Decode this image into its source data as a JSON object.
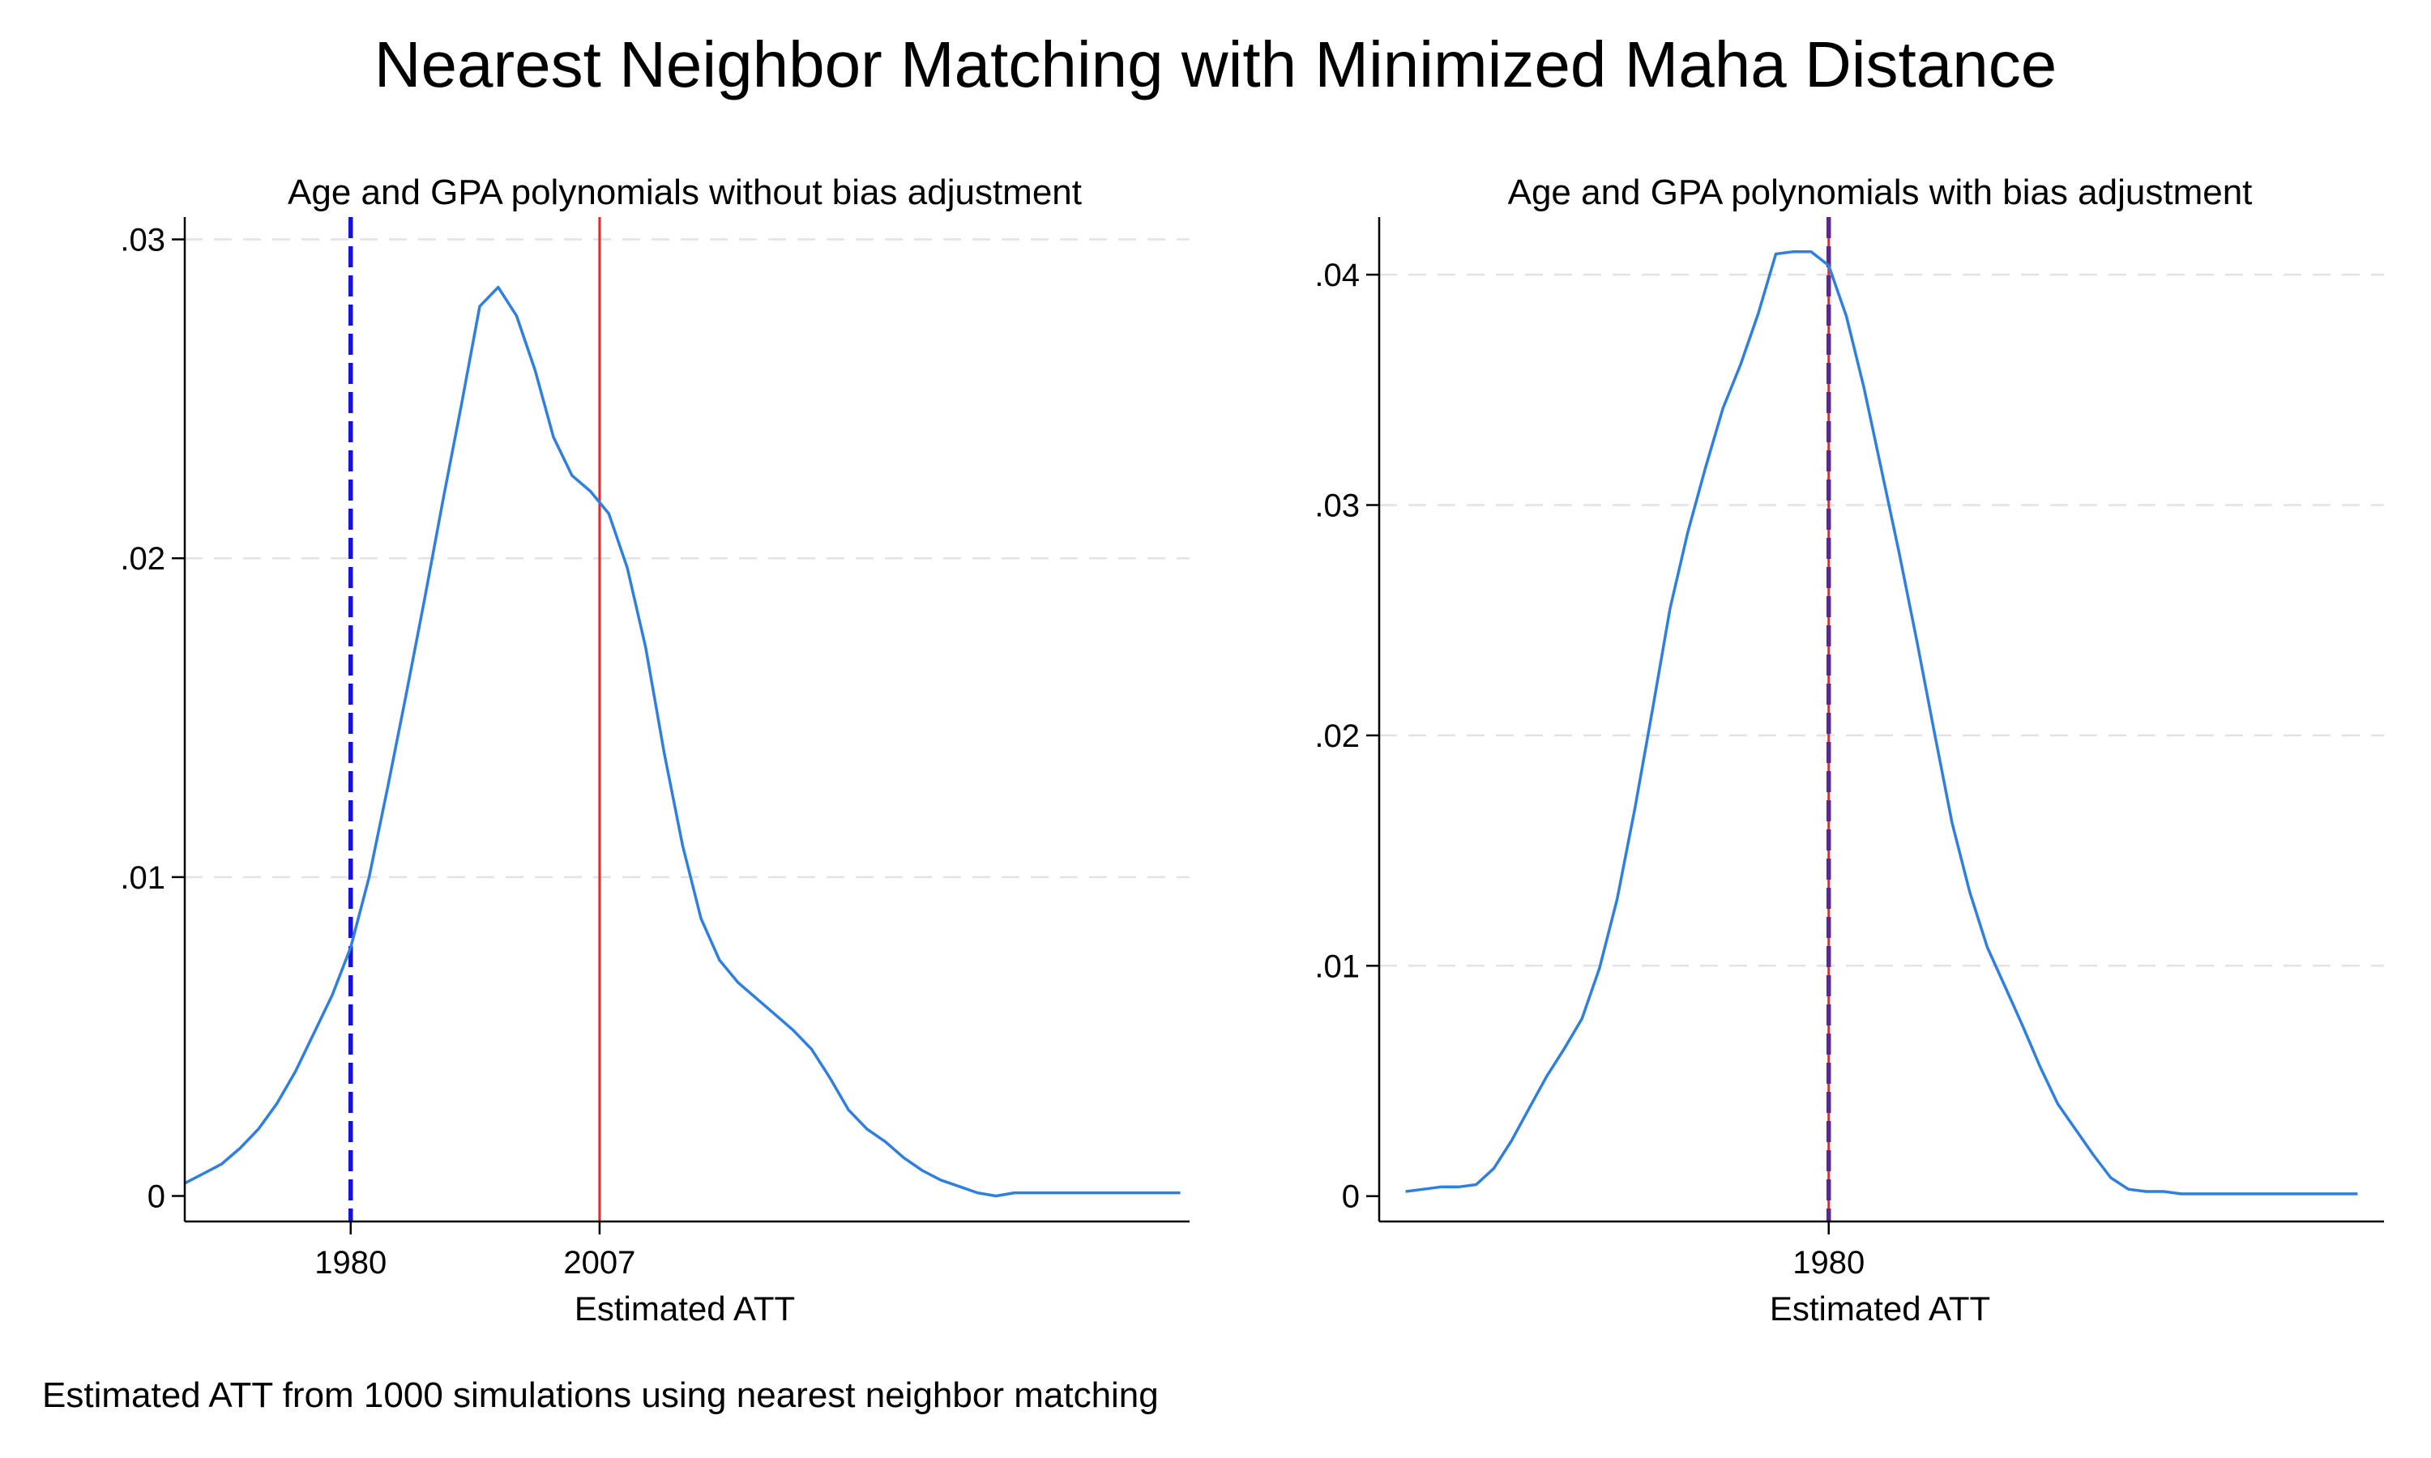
{
  "title": "Nearest Neighbor Matching with Minimized Maha Distance",
  "caption": "Estimated ATT from 1000 simulations using nearest neighbor matching",
  "colors": {
    "density": "#2f7fdf",
    "true_att_line": "#e8262b",
    "mean_line": "#1414d8",
    "grid": "#e3e3e3",
    "axis": "#000000"
  },
  "chart_data": [
    {
      "type": "line",
      "title": "Age and GPA polynomials without bias adjustment",
      "xlabel": "Estimated ATT",
      "ylabel": "",
      "x_ticks": [
        1980,
        2007
      ],
      "x_tick_labels": [
        "1980",
        "2007"
      ],
      "y_ticks": [
        0,
        0.01,
        0.02,
        0.03
      ],
      "y_tick_labels": [
        "0",
        ".01",
        ".02",
        ".03"
      ],
      "xlim": [
        1962,
        2071
      ],
      "ylim": [
        -0.0008,
        0.0307
      ],
      "grid": true,
      "series": [
        {
          "style": "density",
          "x": [
            1962,
            1964,
            1966,
            1968,
            1970,
            1972,
            1974,
            1976,
            1978,
            1980,
            1982,
            1984,
            1986,
            1988,
            1990,
            1992,
            1994,
            1996,
            1998,
            2000,
            2002,
            2004,
            2006,
            2008,
            2010,
            2012,
            2014,
            2016,
            2018,
            2020,
            2022,
            2024,
            2026,
            2028,
            2030,
            2032,
            2034,
            2036,
            2038,
            2040,
            2042,
            2044,
            2046,
            2048,
            2050,
            2052,
            2054,
            2056,
            2058,
            2060,
            2062,
            2064,
            2066,
            2068,
            2070
          ],
          "y": [
            0.0004,
            0.0007,
            0.001,
            0.0015,
            0.0021,
            0.0029,
            0.0039,
            0.0051,
            0.0063,
            0.0078,
            0.01,
            0.0128,
            0.0157,
            0.0187,
            0.0218,
            0.0248,
            0.0279,
            0.0285,
            0.0276,
            0.0259,
            0.0238,
            0.0226,
            0.0221,
            0.0214,
            0.0197,
            0.0172,
            0.0139,
            0.011,
            0.0087,
            0.0074,
            0.0067,
            0.0062,
            0.0057,
            0.0052,
            0.0046,
            0.0037,
            0.0027,
            0.0021,
            0.0017,
            0.0012,
            0.0008,
            0.0005,
            0.0003,
            0.0001,
            0.0,
            0.0001,
            0.0001,
            0.0001,
            0.0001,
            0.0001,
            0.0001,
            0.0001,
            0.0001,
            0.0001,
            0.0001
          ]
        }
      ],
      "vlines": [
        {
          "x": 1980,
          "style": "dashed",
          "color": "#1414d8"
        },
        {
          "x": 2007,
          "style": "solid",
          "color": "#e8262b"
        }
      ]
    },
    {
      "type": "line",
      "title": "Age and GPA polynomials with bias adjustment",
      "xlabel": "Estimated ATT",
      "ylabel": "",
      "x_ticks": [
        1980
      ],
      "x_tick_labels": [
        "1980"
      ],
      "y_ticks": [
        0,
        0.01,
        0.02,
        0.03,
        0.04
      ],
      "y_tick_labels": [
        "0",
        ".01",
        ".02",
        ".03",
        ".04"
      ],
      "xlim": [
        1929,
        2043
      ],
      "ylim": [
        -0.0011,
        0.0425
      ],
      "grid": true,
      "series": [
        {
          "style": "density",
          "x": [
            1932,
            1934,
            1936,
            1938,
            1940,
            1942,
            1944,
            1946,
            1948,
            1950,
            1952,
            1954,
            1956,
            1958,
            1960,
            1962,
            1964,
            1966,
            1968,
            1970,
            1972,
            1974,
            1976,
            1978,
            1980,
            1982,
            1984,
            1986,
            1988,
            1990,
            1992,
            1994,
            1996,
            1998,
            2000,
            2002,
            2004,
            2006,
            2008,
            2010,
            2012,
            2014,
            2016,
            2018,
            2020,
            2022,
            2024,
            2026,
            2028,
            2030,
            2032,
            2034,
            2036,
            2038,
            2040
          ],
          "y": [
            0.0002,
            0.0003,
            0.0004,
            0.0004,
            0.0005,
            0.0012,
            0.0024,
            0.0038,
            0.0052,
            0.0064,
            0.0077,
            0.0099,
            0.0129,
            0.0168,
            0.0211,
            0.0255,
            0.0288,
            0.0316,
            0.0342,
            0.0361,
            0.0383,
            0.0409,
            0.041,
            0.041,
            0.0404,
            0.0382,
            0.0351,
            0.0315,
            0.0279,
            0.0241,
            0.0201,
            0.0162,
            0.0132,
            0.0108,
            0.0091,
            0.0074,
            0.0056,
            0.004,
            0.0029,
            0.0018,
            0.0008,
            0.0003,
            0.0002,
            0.0002,
            0.0001,
            0.0001,
            0.0001,
            0.0001,
            0.0001,
            0.0001,
            0.0001,
            0.0001,
            0.0001,
            0.0001,
            0.0001
          ]
        }
      ],
      "vlines": [
        {
          "x": 1980,
          "style": "solid",
          "color": "#e8262b"
        },
        {
          "x": 1980,
          "style": "dashed",
          "color": "#5a2a8a"
        }
      ]
    }
  ]
}
